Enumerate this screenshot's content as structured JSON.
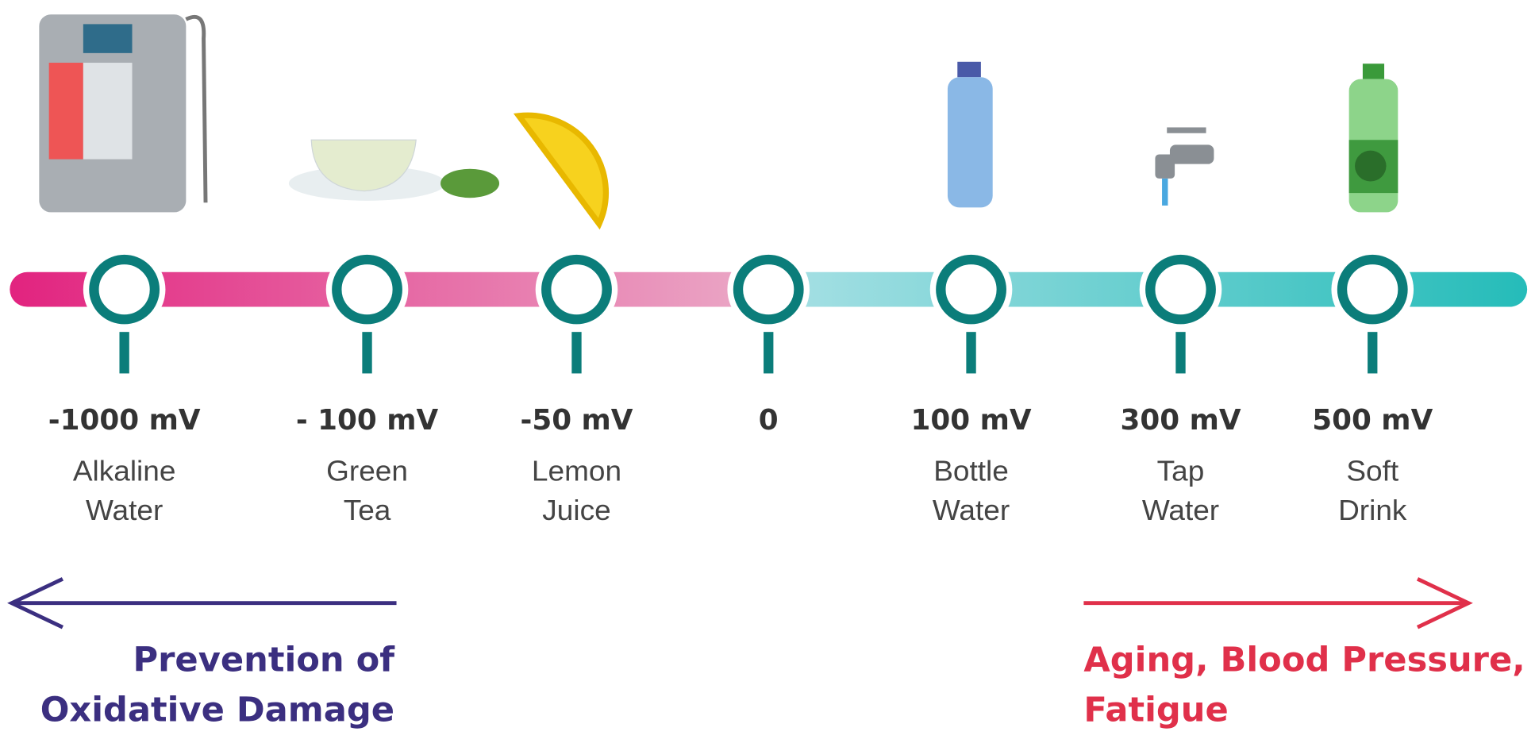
{
  "items": [
    {
      "value": "-1000 mV",
      "name": [
        "Alkaline",
        "Water"
      ]
    },
    {
      "value": "- 100 mV",
      "name": [
        "Green",
        "Tea"
      ]
    },
    {
      "value": "-50 mV",
      "name": [
        "Lemon",
        "Juice"
      ]
    },
    {
      "value": "0"
    },
    {
      "value": "100 mV",
      "name": [
        "Bottle",
        "Water"
      ]
    },
    {
      "value": "300 mV",
      "name": [
        "Tap",
        "Water"
      ]
    },
    {
      "value": "500 mV",
      "name": [
        "Soft",
        "Drink"
      ]
    }
  ],
  "left_caption": [
    "Prevention of",
    "Oxidative Damage"
  ],
  "right_caption": [
    "Aging, Blood Pressure,",
    "Fatigue"
  ]
}
